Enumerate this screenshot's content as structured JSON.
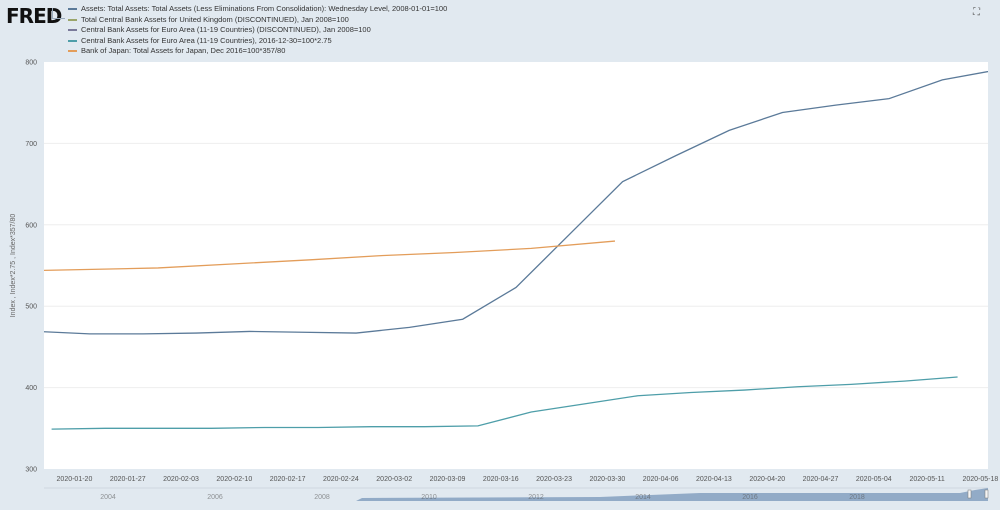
{
  "logo_text": "FRED",
  "fullscreen_icon": "fullscreen-icon",
  "chart_data": {
    "type": "line",
    "title": "",
    "xlabel": "",
    "ylabel": "Index , Index*2.75 , Index*357/80",
    "xlim": [
      "2020-01-16",
      "2020-05-19"
    ],
    "ylim": [
      300,
      800
    ],
    "yticks": [
      300,
      400,
      500,
      600,
      700,
      800
    ],
    "xticks": [
      "2020-01-20",
      "2020-01-27",
      "2020-02-03",
      "2020-02-10",
      "2020-02-17",
      "2020-02-24",
      "2020-03-02",
      "2020-03-09",
      "2020-03-16",
      "2020-03-23",
      "2020-03-30",
      "2020-04-06",
      "2020-04-13",
      "2020-04-20",
      "2020-04-27",
      "2020-05-04",
      "2020-05-11",
      "2020-05-18"
    ],
    "grid": true,
    "legend_position": "top",
    "series": [
      {
        "name": "Assets: Total Assets: Total Assets (Less Eliminations From Consolidation): Wednesday Level, 2008-01-01=100",
        "color": "#5b7a99",
        "x": [
          "2020-01-15",
          "2020-01-22",
          "2020-01-29",
          "2020-02-05",
          "2020-02-12",
          "2020-02-19",
          "2020-02-26",
          "2020-03-04",
          "2020-03-11",
          "2020-03-18",
          "2020-03-25",
          "2020-04-01",
          "2020-04-08",
          "2020-04-15",
          "2020-04-22",
          "2020-04-29",
          "2020-05-06",
          "2020-05-13",
          "2020-05-20"
        ],
        "y": [
          469,
          466,
          466,
          467,
          469,
          468,
          467,
          474,
          484,
          523,
          588,
          653,
          685,
          716,
          738,
          747,
          755,
          778,
          790
        ]
      },
      {
        "name": "Total Central Bank Assets for United Kingdom (DISCONTINUED), Jan 2008=100",
        "color": "#9aa56a",
        "x": [],
        "y": []
      },
      {
        "name": "Central Bank Assets for Euro Area (11-19 Countries) (DISCONTINUED), Jan 2008=100",
        "color": "#7a7a9a",
        "x": [],
        "y": []
      },
      {
        "name": "Central Bank Assets for Euro Area (11-19 Countries), 2016-12-30=100*2.75",
        "color": "#4e9ea9",
        "x": [
          "2020-01-17",
          "2020-01-24",
          "2020-01-31",
          "2020-02-07",
          "2020-02-14",
          "2020-02-21",
          "2020-02-28",
          "2020-03-06",
          "2020-03-13",
          "2020-03-20",
          "2020-03-27",
          "2020-04-03",
          "2020-04-10",
          "2020-04-17",
          "2020-04-24",
          "2020-05-01",
          "2020-05-08",
          "2020-05-15"
        ],
        "y": [
          349,
          350,
          350,
          350,
          351,
          351,
          352,
          352,
          353,
          370,
          380,
          390,
          394,
          397,
          401,
          404,
          408,
          413
        ]
      },
      {
        "name": "Bank of Japan: Total Assets for Japan, Dec 2016=100*357/80",
        "color": "#e39d5a",
        "x": [
          "2020-01-16",
          "2020-01-31",
          "2020-02-10",
          "2020-02-20",
          "2020-02-29",
          "2020-03-10",
          "2020-03-20",
          "2020-03-31"
        ],
        "y": [
          544,
          547,
          552,
          557,
          562,
          566,
          571,
          580
        ]
      }
    ],
    "navigator_labels": [
      "2004",
      "2006",
      "2008",
      "2010",
      "2012",
      "2014",
      "2016",
      "2018"
    ]
  }
}
